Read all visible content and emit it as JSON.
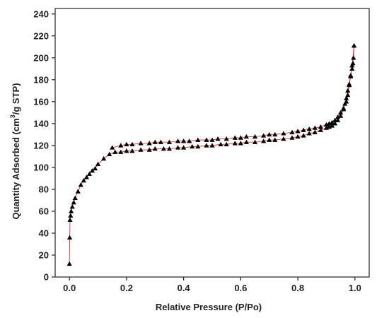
{
  "chart_data": {
    "type": "scatter",
    "title": "",
    "xlabel": "Relative Pressure (P/Po)",
    "ylabel": {
      "prefix": "Quantity Adsorbed (cm",
      "superscript": "3",
      "suffix": "/g STP)"
    },
    "xlim": [
      -0.05,
      1.05
    ],
    "ylim": [
      0,
      245
    ],
    "x_ticks": [
      0.0,
      0.2,
      0.4,
      0.6,
      0.8,
      1.0
    ],
    "x_tick_labels": [
      "0.0",
      "0.2",
      "0.4",
      "0.6",
      "0.8",
      "1.0"
    ],
    "y_ticks": [
      0,
      20,
      40,
      60,
      80,
      100,
      120,
      140,
      160,
      180,
      200,
      220,
      240
    ],
    "y_tick_labels": [
      "0",
      "20",
      "40",
      "60",
      "80",
      "100",
      "120",
      "140",
      "160",
      "180",
      "200",
      "220",
      "240"
    ],
    "grid": false,
    "marker": "triangle",
    "marker_color": "#000000",
    "line_color": "#e03030",
    "series": [
      {
        "x": [
          0.0,
          0.001,
          0.002,
          0.004,
          0.006,
          0.01,
          0.015,
          0.02,
          0.03,
          0.04,
          0.05,
          0.06,
          0.07,
          0.08,
          0.09,
          0.1,
          0.12,
          0.14,
          0.16,
          0.18,
          0.2,
          0.22,
          0.25,
          0.28,
          0.3,
          0.33,
          0.35,
          0.38,
          0.4,
          0.43,
          0.45,
          0.48,
          0.5,
          0.53,
          0.55,
          0.58,
          0.6,
          0.62,
          0.65,
          0.68,
          0.7,
          0.72,
          0.75,
          0.78,
          0.8,
          0.82,
          0.84,
          0.86,
          0.88,
          0.9,
          0.91,
          0.92,
          0.93,
          0.94,
          0.95,
          0.96,
          0.965,
          0.97,
          0.975,
          0.98,
          0.985,
          0.99,
          0.993,
          0.995,
          0.997
        ],
        "y": [
          12,
          36,
          52,
          56,
          60,
          64,
          68,
          72,
          78,
          84,
          88,
          91,
          94,
          97,
          99,
          103,
          108,
          112,
          114,
          114,
          115,
          115,
          116,
          116,
          117,
          117,
          117,
          118,
          118,
          119,
          119,
          120,
          120,
          121,
          121,
          122,
          122,
          123,
          123,
          124,
          125,
          125,
          126,
          127,
          128,
          129,
          131,
          132,
          134,
          136,
          137,
          138,
          140,
          143,
          147,
          153,
          158,
          163,
          170,
          176,
          184,
          190,
          195,
          200,
          211
        ]
      },
      {
        "x": [
          0.997,
          0.99,
          0.985,
          0.98,
          0.975,
          0.97,
          0.96,
          0.95,
          0.94,
          0.93,
          0.92,
          0.91,
          0.9,
          0.88,
          0.86,
          0.84,
          0.82,
          0.8,
          0.78,
          0.75,
          0.72,
          0.7,
          0.68,
          0.65,
          0.62,
          0.6,
          0.58,
          0.55,
          0.52,
          0.5,
          0.48,
          0.45,
          0.42,
          0.4,
          0.38,
          0.35,
          0.32,
          0.3,
          0.28,
          0.25,
          0.22,
          0.2,
          0.18,
          0.15
        ],
        "y": [
          211,
          193,
          183,
          175,
          166,
          160,
          154,
          150,
          146,
          143,
          141,
          140,
          139,
          137,
          136,
          135,
          134,
          133,
          132,
          131,
          130,
          130,
          129,
          128,
          128,
          127,
          127,
          126,
          126,
          125,
          125,
          125,
          124,
          124,
          124,
          123,
          123,
          123,
          122,
          122,
          121,
          121,
          120,
          118
        ]
      }
    ]
  }
}
